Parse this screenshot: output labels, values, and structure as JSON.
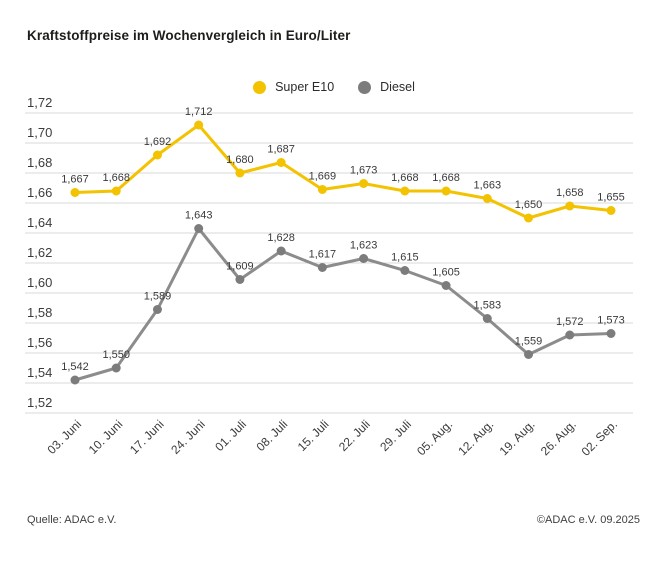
{
  "title": "Kraftstoffpreise im Wochenvergleich in Euro/Liter",
  "footer": {
    "source": "Quelle: ADAC e.V.",
    "copyright": "©ADAC e.V. 09.2025"
  },
  "colors": {
    "super_e10": "#F3C200",
    "diesel_line": "#8C8C8C",
    "diesel_marker": "#7C7C7C",
    "gridline": "#D9D9D9",
    "tick_text": "#3C3C3C",
    "value_label_text": "#3A3A3A"
  },
  "chart_data": {
    "type": "line",
    "title": "Kraftstoffpreise im Wochenvergleich in Euro/Liter",
    "xlabel": "",
    "ylabel": "Euro/Liter",
    "categories": [
      "03. Juni",
      "10. Juni",
      "17. Juni",
      "24. Juni",
      "01. Juli",
      "08. Juli",
      "15. Juli",
      "22. Juli",
      "29. Juli",
      "05. Aug.",
      "12. Aug.",
      "19. Aug.",
      "26. Aug.",
      "02. Sep."
    ],
    "series": [
      {
        "name": "Super E10",
        "color": "#F3C200",
        "marker_color": "#F3C200",
        "values": [
          1.667,
          1.668,
          1.692,
          1.712,
          1.68,
          1.687,
          1.669,
          1.673,
          1.668,
          1.668,
          1.663,
          1.65,
          1.658,
          1.655
        ],
        "value_labels": [
          "1,667",
          "1,668",
          "1,692",
          "1,712",
          "1,680",
          "1,687",
          "1,669",
          "1,673",
          "1,668",
          "1,668",
          "1,663",
          "1,650",
          "1,658",
          "1,655"
        ]
      },
      {
        "name": "Diesel",
        "color": "#8C8C8C",
        "marker_color": "#7C7C7C",
        "values": [
          1.542,
          1.55,
          1.589,
          1.643,
          1.609,
          1.628,
          1.617,
          1.623,
          1.615,
          1.605,
          1.583,
          1.559,
          1.572,
          1.573
        ],
        "value_labels": [
          "1,542",
          "1,550",
          "1,589",
          "1,643",
          "1,609",
          "1,628",
          "1,617",
          "1,623",
          "1,615",
          "1,605",
          "1,583",
          "1,559",
          "1,572",
          "1,573"
        ]
      }
    ],
    "ylim": [
      1.52,
      1.72
    ],
    "ytick_values": [
      1.72,
      1.7,
      1.68,
      1.66,
      1.64,
      1.62,
      1.6,
      1.58,
      1.56,
      1.54,
      1.52
    ],
    "ytick_labels": [
      "1,72",
      "1,70",
      "1,68",
      "1,66",
      "1,64",
      "1,62",
      "1,60",
      "1,58",
      "1,56",
      "1,54",
      "1,52"
    ],
    "grid": true,
    "value_labels_shown": true,
    "legend_position": "top-center",
    "decimal_separator": ","
  }
}
